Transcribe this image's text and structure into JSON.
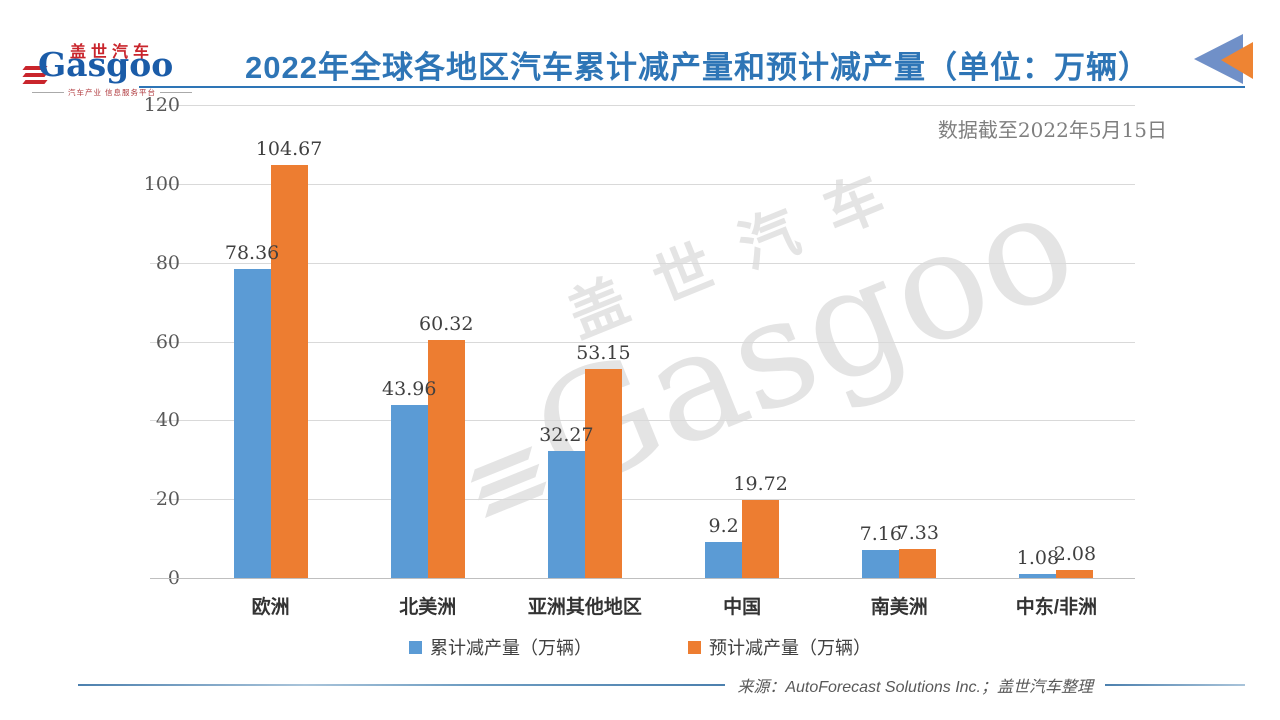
{
  "logo": {
    "brand_cn": "盖世汽车",
    "brand_en": "Gasgoo",
    "tagline": "汽车产业 信息服务平台"
  },
  "title": "2022年全球各地区汽车累计减产量和预计减产量（单位：万辆）",
  "data_note": "数据截至2022年5月15日",
  "source": "来源：AutoForecast Solutions Inc.；盖世汽车整理",
  "watermark": {
    "cn": "盖世汽车",
    "en": "Gasgoo"
  },
  "colors": {
    "series_cumulative": "#5B9BD5",
    "series_expected": "#ED7D31",
    "title_blue": "#2E75B6",
    "grid": "#D9D9D9",
    "axis": "#BFBFBF",
    "label_dark": "#404040",
    "tick_gray": "#595959",
    "note_gray": "#7F7F7F",
    "logo_red": "#C9252C",
    "logo_blue": "#1B5CA8",
    "icon_blue": "#7090C8",
    "icon_orange": "#EE8433"
  },
  "chart_data": {
    "type": "bar",
    "title": "2022年全球各地区汽车累计减产量和预计减产量（单位：万辆）",
    "categories": [
      "欧洲",
      "北美洲",
      "亚洲其他地区",
      "中国",
      "南美洲",
      "中东/非洲"
    ],
    "series": [
      {
        "name": "累计减产量（万辆）",
        "color": "#5B9BD5",
        "values": [
          78.36,
          43.96,
          32.27,
          9.2,
          7.16,
          1.08
        ]
      },
      {
        "name": "预计减产量（万辆）",
        "color": "#ED7D31",
        "values": [
          104.67,
          60.32,
          53.15,
          19.72,
          7.33,
          2.08
        ]
      }
    ],
    "xlabel": "",
    "ylabel": "",
    "ylim": [
      0,
      120
    ],
    "yticks": [
      0,
      20,
      40,
      60,
      80,
      100,
      120
    ],
    "grid": true,
    "value_labels": true,
    "legend_position": "bottom"
  }
}
